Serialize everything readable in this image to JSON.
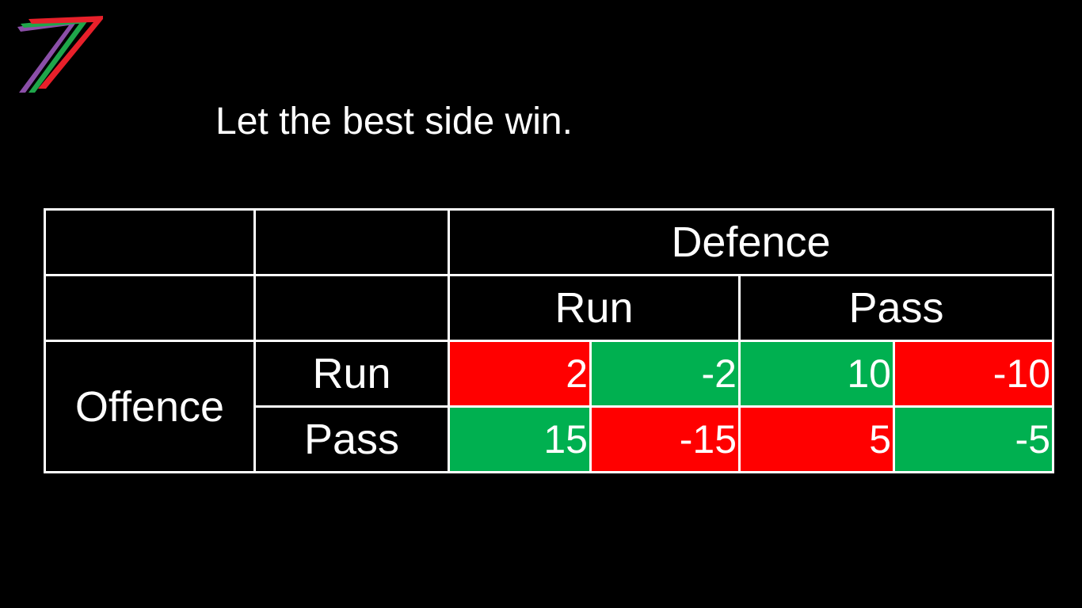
{
  "logo": {
    "icon": "seven-stripes-logo-icon",
    "colors": [
      "#8B4FA8",
      "#1FA64A",
      "#E8202A"
    ]
  },
  "slide": {
    "title": "Let the best side win."
  },
  "table": {
    "column_group_label": "Defence",
    "row_group_label": "Offence",
    "column_labels": [
      "Run",
      "Pass"
    ],
    "row_labels": [
      "Run",
      "Pass"
    ],
    "colors": {
      "red": "#FF0000",
      "green": "#00B050"
    },
    "rows": [
      {
        "label": "Run",
        "cells": [
          {
            "value": "2",
            "color": "red"
          },
          {
            "value": "-2",
            "color": "green"
          },
          {
            "value": "10",
            "color": "green"
          },
          {
            "value": "-10",
            "color": "red"
          }
        ]
      },
      {
        "label": "Pass",
        "cells": [
          {
            "value": "15",
            "color": "green"
          },
          {
            "value": "-15",
            "color": "red"
          },
          {
            "value": "5",
            "color": "red"
          },
          {
            "value": "-5",
            "color": "green"
          }
        ]
      }
    ]
  }
}
